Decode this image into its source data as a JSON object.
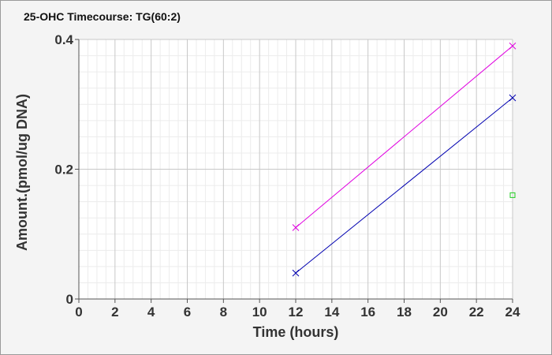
{
  "chart_data": {
    "type": "line",
    "title": "25-OHC Timecourse: TG(60:2)",
    "xlabel": "Time (hours)",
    "ylabel": "Amount.(pmol/ug DNA)",
    "xlim": [
      0,
      24
    ],
    "ylim": [
      0,
      0.4
    ],
    "x_ticks": [
      0,
      2,
      4,
      6,
      8,
      10,
      12,
      14,
      16,
      18,
      20,
      22,
      24
    ],
    "y_ticks": [
      {
        "value": 0,
        "label": "0"
      },
      {
        "value": 0.2,
        "label": "0.2"
      },
      {
        "value": 0.4,
        "label": "0.4"
      }
    ],
    "grid": true,
    "legend": "none",
    "series": [
      {
        "color": "#e000e0",
        "marker": "x",
        "line": true,
        "points": [
          [
            12,
            0.11
          ],
          [
            24,
            0.39
          ]
        ]
      },
      {
        "color": "#0000b0",
        "marker": "x",
        "line": true,
        "points": [
          [
            12,
            0.04
          ],
          [
            24,
            0.31
          ]
        ]
      },
      {
        "color": "#22cc22",
        "marker": "square",
        "line": false,
        "points": [
          [
            24,
            0.16
          ]
        ]
      }
    ]
  }
}
